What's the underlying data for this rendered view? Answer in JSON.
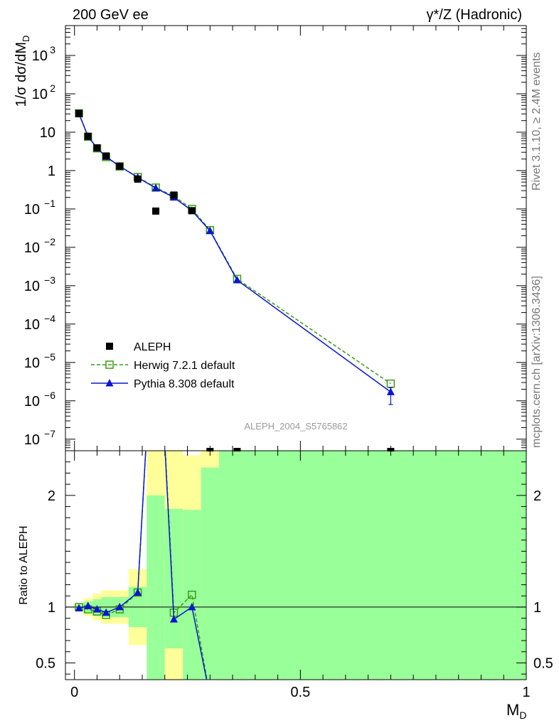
{
  "header": {
    "left": "200 GeV ee",
    "right": "γ*/Z (Hadronic)"
  },
  "side": {
    "rivet": "Rivet 3.1.10, ≥ 2.4M events",
    "mcplots": "mcplots.cern.ch [arXiv:1306.3436]"
  },
  "watermark": "ALEPH_2004_S5765862",
  "chart_data": [
    {
      "type": "scatter",
      "panel": "main",
      "ylabel": "1/σ dσ/dM_D",
      "xlabel": "M_D",
      "yscale": "log",
      "ylim": [
        5e-08,
        6000
      ],
      "xlim": [
        -0.02,
        1.0
      ],
      "y_ticks": [
        {
          "value": 1e-07,
          "label": "10",
          "exp": "−7"
        },
        {
          "value": 1e-06,
          "label": "10",
          "exp": "−6"
        },
        {
          "value": 1e-05,
          "label": "10",
          "exp": "−5"
        },
        {
          "value": 0.0001,
          "label": "10",
          "exp": "−4"
        },
        {
          "value": 0.001,
          "label": "10",
          "exp": "−3"
        },
        {
          "value": 0.01,
          "label": "10",
          "exp": "−2"
        },
        {
          "value": 0.1,
          "label": "10",
          "exp": "−1"
        },
        {
          "value": 1,
          "label": "1",
          "exp": ""
        },
        {
          "value": 10,
          "label": "10",
          "exp": ""
        },
        {
          "value": 100,
          "label": "10",
          "exp": "2"
        },
        {
          "value": 1000,
          "label": "10",
          "exp": "3"
        }
      ],
      "legend_position": "bottom-left",
      "series": [
        {
          "name": "ALEPH",
          "color": "#000000",
          "marker": "filled-square",
          "points": [
            {
              "x": 0.01,
              "y": 31
            },
            {
              "x": 0.03,
              "y": 7.8
            },
            {
              "x": 0.05,
              "y": 3.9
            },
            {
              "x": 0.07,
              "y": 2.4
            },
            {
              "x": 0.1,
              "y": 1.3
            },
            {
              "x": 0.14,
              "y": 0.6
            },
            {
              "x": 0.18,
              "y": 0.088
            },
            {
              "x": 0.22,
              "y": 0.23
            },
            {
              "x": 0.26,
              "y": 0.09
            }
          ],
          "offscale_points": [
            {
              "x": 0.3
            },
            {
              "x": 0.36
            },
            {
              "x": 0.7
            }
          ]
        },
        {
          "name": "Herwig 7.2.1 default",
          "color": "#3a9c14",
          "marker": "open-square",
          "line": "dashed",
          "points": [
            {
              "x": 0.01,
              "y": 31
            },
            {
              "x": 0.03,
              "y": 7.6
            },
            {
              "x": 0.05,
              "y": 3.8
            },
            {
              "x": 0.07,
              "y": 2.25
            },
            {
              "x": 0.1,
              "y": 1.28
            },
            {
              "x": 0.14,
              "y": 0.68
            },
            {
              "x": 0.18,
              "y": 0.36
            },
            {
              "x": 0.22,
              "y": 0.215
            },
            {
              "x": 0.26,
              "y": 0.1
            },
            {
              "x": 0.3,
              "y": 0.028
            },
            {
              "x": 0.36,
              "y": 0.0015
            },
            {
              "x": 0.7,
              "y": 2.8e-06
            }
          ]
        },
        {
          "name": "Pythia 8.308 default",
          "color": "#0a14d4",
          "marker": "filled-triangle",
          "line": "solid",
          "points": [
            {
              "x": 0.01,
              "y": 30
            },
            {
              "x": 0.03,
              "y": 7.8
            },
            {
              "x": 0.05,
              "y": 3.85
            },
            {
              "x": 0.07,
              "y": 2.3
            },
            {
              "x": 0.1,
              "y": 1.3
            },
            {
              "x": 0.14,
              "y": 0.66
            },
            {
              "x": 0.18,
              "y": 0.35
            },
            {
              "x": 0.22,
              "y": 0.2
            },
            {
              "x": 0.26,
              "y": 0.09
            },
            {
              "x": 0.3,
              "y": 0.027
            },
            {
              "x": 0.36,
              "y": 0.0014
            },
            {
              "x": 0.7,
              "y": 1.7e-06,
              "yerr": [
                8e-07,
                2.2e-06
              ]
            }
          ]
        }
      ]
    },
    {
      "type": "line",
      "panel": "ratio",
      "ylabel": "Ratio to ALEPH",
      "xlabel": "M_D",
      "ylim": [
        0.35,
        2.4
      ],
      "xlim": [
        -0.02,
        1.0
      ],
      "y_ticks": [
        {
          "value": 0.5,
          "label": "0.5"
        },
        {
          "value": 1,
          "label": "1"
        },
        {
          "value": 2,
          "label": "2"
        }
      ],
      "x_ticks": [
        {
          "value": 0,
          "label": "0"
        },
        {
          "value": 0.5,
          "label": "0.5"
        },
        {
          "value": 1,
          "label": "1"
        }
      ],
      "reference_line": 1,
      "bands": [
        {
          "x0": 0.0,
          "x1": 0.02,
          "yellow": [
            0.97,
            1.03
          ],
          "green": [
            0.98,
            1.02
          ]
        },
        {
          "x0": 0.02,
          "x1": 0.04,
          "yellow": [
            0.92,
            1.08
          ],
          "green": [
            0.95,
            1.05
          ]
        },
        {
          "x0": 0.04,
          "x1": 0.06,
          "yellow": [
            0.88,
            1.12
          ],
          "green": [
            0.93,
            1.07
          ]
        },
        {
          "x0": 0.06,
          "x1": 0.08,
          "yellow": [
            0.85,
            1.15
          ],
          "green": [
            0.91,
            1.09
          ]
        },
        {
          "x0": 0.08,
          "x1": 0.12,
          "yellow": [
            0.85,
            1.15
          ],
          "green": [
            0.91,
            1.09
          ]
        },
        {
          "x0": 0.12,
          "x1": 0.16,
          "yellow": [
            0.66,
            1.34
          ],
          "green": [
            0.82,
            1.18
          ]
        },
        {
          "x0": 0.16,
          "x1": 0.2,
          "yellow": [
            0.35,
            2.4
          ],
          "green": [
            0.35,
            2.0
          ]
        },
        {
          "x0": 0.2,
          "x1": 0.24,
          "yellow": [
            0.35,
            2.4
          ],
          "green": [
            0.63,
            1.88
          ]
        },
        {
          "x0": 0.24,
          "x1": 0.28,
          "yellow": [
            0.35,
            2.36
          ],
          "green": [
            0.35,
            1.87
          ]
        },
        {
          "x0": 0.28,
          "x1": 0.32,
          "yellow": [
            0.35,
            2.4
          ],
          "green": [
            0.35,
            2.25
          ]
        },
        {
          "x0": 0.32,
          "x1": 1.0,
          "yellow": [
            0.35,
            2.4
          ],
          "green": [
            0.35,
            2.4
          ]
        }
      ],
      "series": [
        {
          "name": "Herwig 7.2.1 default",
          "color": "#3a9c14",
          "marker": "open-square",
          "line": "dashed",
          "points": [
            {
              "x": 0.01,
              "y": 1.0
            },
            {
              "x": 0.03,
              "y": 0.98
            },
            {
              "x": 0.05,
              "y": 0.96
            },
            {
              "x": 0.07,
              "y": 0.93
            },
            {
              "x": 0.1,
              "y": 0.98
            },
            {
              "x": 0.14,
              "y": 1.13
            },
            {
              "x": 0.18,
              "y": 4.0
            },
            {
              "x": 0.22,
              "y": 0.95
            },
            {
              "x": 0.26,
              "y": 1.11
            },
            {
              "x": 0.3,
              "y": 0.2
            }
          ]
        },
        {
          "name": "Pythia 8.308 default",
          "color": "#0a14d4",
          "marker": "filled-triangle",
          "line": "solid",
          "points": [
            {
              "x": 0.01,
              "y": 0.99
            },
            {
              "x": 0.03,
              "y": 1.01
            },
            {
              "x": 0.05,
              "y": 0.98
            },
            {
              "x": 0.07,
              "y": 0.95
            },
            {
              "x": 0.1,
              "y": 1.0
            },
            {
              "x": 0.14,
              "y": 1.13
            },
            {
              "x": 0.18,
              "y": 4.0
            },
            {
              "x": 0.22,
              "y": 0.89
            },
            {
              "x": 0.26,
              "y": 1.0
            },
            {
              "x": 0.3,
              "y": 0.2
            }
          ]
        }
      ]
    }
  ]
}
